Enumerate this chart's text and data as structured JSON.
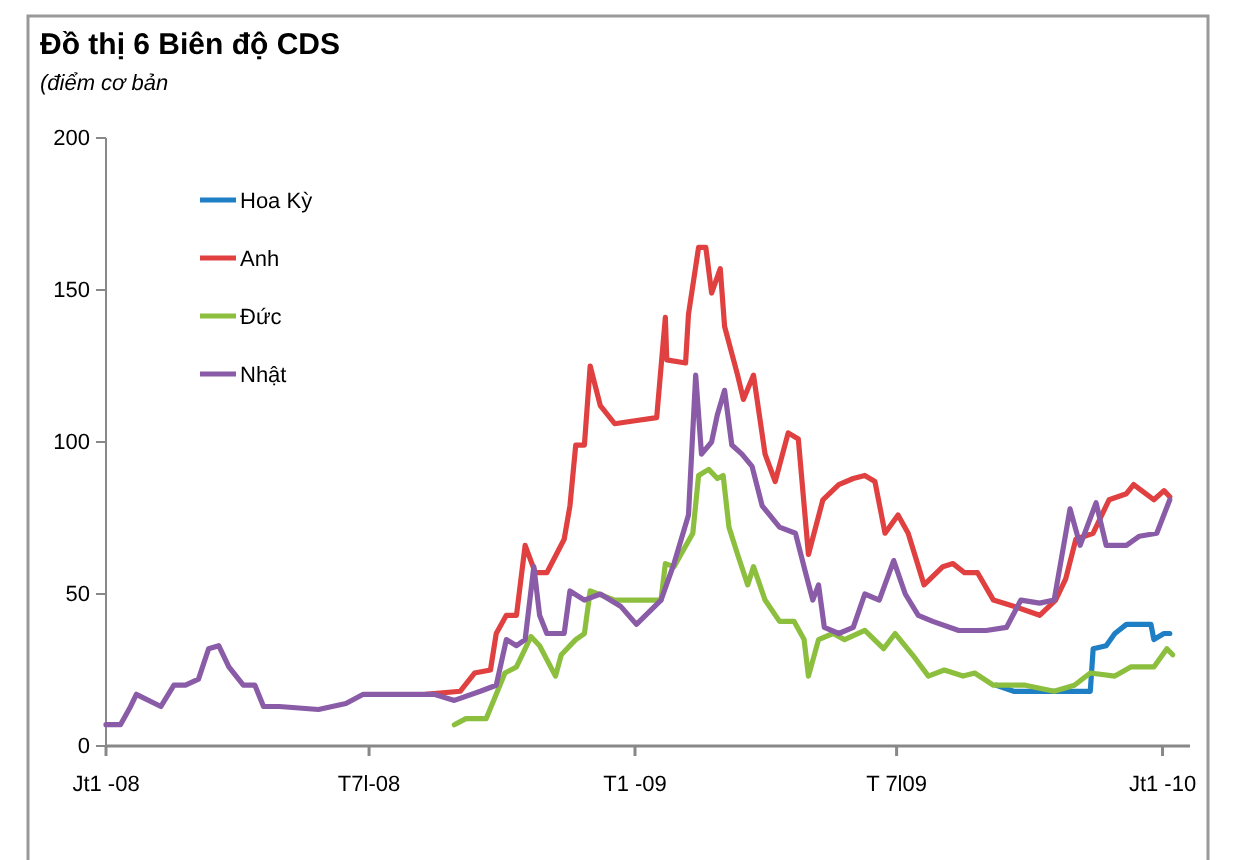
{
  "chart_data": {
    "type": "line",
    "title": "Đồ thị 6 Biên độ CDS",
    "subtitle": "(điểm cơ bản",
    "xlim": [
      "2008-01-01",
      "2010-01-20"
    ],
    "xticks": [
      {
        "value": "2008-01-01",
        "label": "Jt1 -08"
      },
      {
        "value": "2008-07-01",
        "label": "T7l-08"
      },
      {
        "value": "2009-01-01",
        "label": "T1  -09"
      },
      {
        "value": "2009-07-01",
        "label": "T 7l09"
      },
      {
        "value": "2010-01-01",
        "label": "Jt1 -10"
      }
    ],
    "ylim": [
      0,
      200
    ],
    "yticks": [
      0,
      50,
      100,
      150,
      200
    ],
    "grid": false,
    "legend": "top left",
    "series": [
      {
        "name": "Hoa Kỳ",
        "color": "#1f7fc4",
        "x": [
          "2009-09-08",
          "2009-09-20",
          "2009-10-18",
          "2009-11-12",
          "2009-11-14",
          "2009-11-23",
          "2009-11-29",
          "2009-12-07",
          "2009-12-24",
          "2009-12-26",
          "2010-01-02",
          "2010-01-06"
        ],
        "values": [
          20,
          18,
          18,
          18,
          32,
          33,
          37,
          40,
          40,
          35,
          37,
          37
        ]
      },
      {
        "name": "Anh",
        "color": "#e04040",
        "x": [
          "2008-08-09",
          "2008-09-02",
          "2008-09-12",
          "2008-09-23",
          "2008-09-27",
          "2008-10-04",
          "2008-10-11",
          "2008-10-17",
          "2008-10-24",
          "2008-11-01",
          "2008-11-13",
          "2008-11-17",
          "2008-11-21",
          "2008-11-27",
          "2008-12-01",
          "2008-12-08",
          "2008-12-18",
          "2009-01-01",
          "2009-01-16",
          "2009-01-22",
          "2009-01-23",
          "2009-02-05",
          "2009-02-07",
          "2009-02-14",
          "2009-02-19",
          "2009-02-23",
          "2009-03-01",
          "2009-03-04",
          "2009-03-13",
          "2009-03-17",
          "2009-03-24",
          "2009-04-01",
          "2009-04-08",
          "2009-04-17",
          "2009-04-24",
          "2009-05-01",
          "2009-05-11",
          "2009-05-22",
          "2009-06-01",
          "2009-06-09",
          "2009-06-16",
          "2009-06-23",
          "2009-07-02",
          "2009-07-09",
          "2009-07-20",
          "2009-08-02",
          "2009-08-09",
          "2009-08-17",
          "2009-08-26",
          "2009-09-06",
          "2009-09-20",
          "2009-10-08",
          "2009-10-19",
          "2009-10-26",
          "2009-11-02",
          "2009-11-14",
          "2009-11-25",
          "2009-12-07",
          "2009-12-12",
          "2009-12-26",
          "2010-01-02",
          "2010-01-06"
        ],
        "values": [
          17,
          18,
          24,
          25,
          37,
          43,
          43,
          66,
          57,
          57,
          68,
          79,
          99,
          99,
          125,
          112,
          106,
          107,
          108,
          141,
          127,
          126,
          142,
          164,
          164,
          149,
          157,
          138,
          122,
          114,
          122,
          96,
          87,
          103,
          101,
          63,
          81,
          86,
          88,
          89,
          87,
          70,
          76,
          70,
          53,
          59,
          60,
          57,
          57,
          48,
          46,
          43,
          48,
          55,
          68,
          70,
          81,
          83,
          86,
          81,
          84,
          82
        ]
      },
      {
        "name": "Đức",
        "color": "#8dbf3f",
        "x": [
          "2008-08-29",
          "2008-09-06",
          "2008-09-20",
          "2008-09-27",
          "2008-10-03",
          "2008-10-11",
          "2008-10-21",
          "2008-10-27",
          "2008-11-07",
          "2008-11-11",
          "2008-11-21",
          "2008-11-27",
          "2008-12-01",
          "2008-12-18",
          "2009-01-05",
          "2009-01-19",
          "2009-01-22",
          "2009-01-28",
          "2009-02-10",
          "2009-02-14",
          "2009-02-21",
          "2009-02-27",
          "2009-03-03",
          "2009-03-07",
          "2009-03-13",
          "2009-03-20",
          "2009-03-24",
          "2009-04-01",
          "2009-04-11",
          "2009-04-21",
          "2009-04-28",
          "2009-05-01",
          "2009-05-08",
          "2009-05-18",
          "2009-05-26",
          "2009-06-09",
          "2009-06-22",
          "2009-06-30",
          "2009-07-12",
          "2009-07-23",
          "2009-08-03",
          "2009-08-16",
          "2009-08-24",
          "2009-09-06",
          "2009-09-28",
          "2009-10-18",
          "2009-11-01",
          "2009-11-12",
          "2009-11-29",
          "2009-12-10",
          "2009-12-26",
          "2010-01-04",
          "2010-01-08"
        ],
        "values": [
          7,
          9,
          9,
          17,
          24,
          26,
          36,
          33,
          23,
          30,
          35,
          37,
          51,
          48,
          48,
          48,
          60,
          59,
          70,
          89,
          91,
          88,
          89,
          72,
          63,
          53,
          59,
          48,
          41,
          41,
          35,
          23,
          35,
          37,
          35,
          38,
          32,
          37,
          30,
          23,
          25,
          23,
          24,
          20,
          20,
          18,
          20,
          24,
          23,
          26,
          26,
          32,
          30
        ]
      },
      {
        "name": "Nhật",
        "color": "#8a5ca8",
        "x": [
          "2008-01-01",
          "2008-01-11",
          "2008-01-18",
          "2008-01-22",
          "2008-02-08",
          "2008-02-17",
          "2008-02-25",
          "2008-03-05",
          "2008-03-12",
          "2008-03-19",
          "2008-03-26",
          "2008-04-05",
          "2008-04-13",
          "2008-04-19",
          "2008-04-30",
          "2008-05-27",
          "2008-06-15",
          "2008-06-27",
          "2008-07-11",
          "2008-08-01",
          "2008-08-15",
          "2008-08-29",
          "2008-09-16",
          "2008-09-27",
          "2008-10-04",
          "2008-10-11",
          "2008-10-17",
          "2008-10-23",
          "2008-10-27",
          "2008-11-01",
          "2008-11-13",
          "2008-11-17",
          "2008-11-27",
          "2008-12-08",
          "2008-12-22",
          "2009-01-02",
          "2009-01-19",
          "2009-01-28",
          "2009-02-07",
          "2009-02-12",
          "2009-02-16",
          "2009-02-23",
          "2009-02-27",
          "2009-03-04",
          "2009-03-09",
          "2009-03-16",
          "2009-03-23",
          "2009-03-30",
          "2009-04-11",
          "2009-04-22",
          "2009-04-29",
          "2009-05-04",
          "2009-05-08",
          "2009-05-12",
          "2009-05-22",
          "2009-06-01",
          "2009-06-09",
          "2009-06-19",
          "2009-06-29",
          "2009-07-07",
          "2009-07-16",
          "2009-07-26",
          "2009-08-13",
          "2009-09-01",
          "2009-09-15",
          "2009-09-25",
          "2009-10-08",
          "2009-10-18",
          "2009-10-29",
          "2009-11-05",
          "2009-11-16",
          "2009-11-23",
          "2009-12-07",
          "2009-12-16",
          "2009-12-28",
          "2010-01-06"
        ],
        "values": [
          7,
          7,
          13,
          17,
          13,
          20,
          20,
          22,
          32,
          33,
          26,
          20,
          20,
          13,
          13,
          12,
          14,
          17,
          17,
          17,
          17,
          15,
          18,
          20,
          35,
          33,
          35,
          59,
          43,
          37,
          37,
          51,
          48,
          50,
          46,
          40,
          48,
          60,
          76,
          122,
          96,
          100,
          109,
          117,
          99,
          96,
          92,
          79,
          72,
          70,
          57,
          48,
          53,
          39,
          37,
          39,
          50,
          48,
          61,
          50,
          43,
          41,
          38,
          38,
          39,
          48,
          47,
          48,
          78,
          66,
          80,
          66,
          66,
          69,
          70,
          81
        ]
      }
    ]
  }
}
